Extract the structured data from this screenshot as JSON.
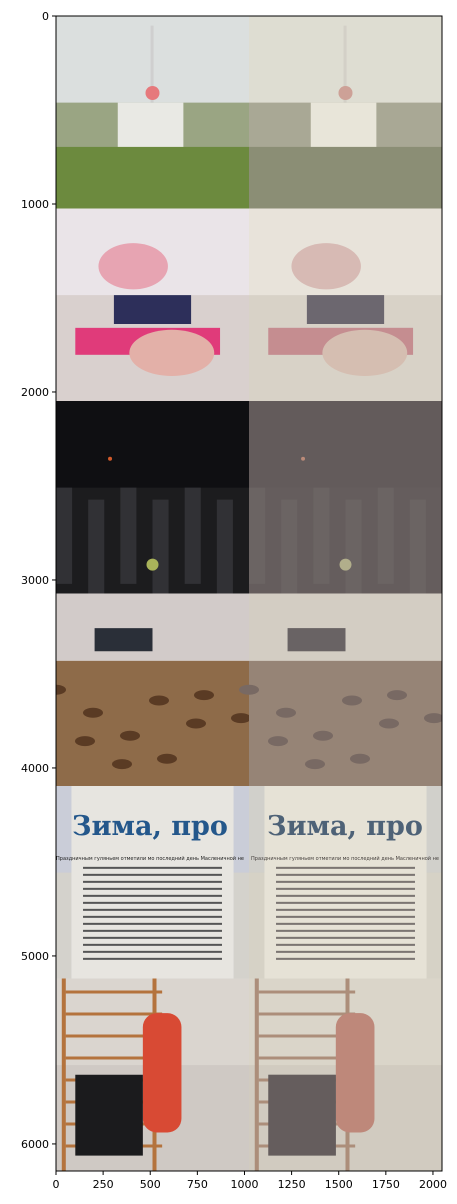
{
  "figure": {
    "panel_columns": 2,
    "panel_rows": 6,
    "rows": [
      {
        "description_tag": "building-tower-on-hill",
        "bg": "#9aa583",
        "sky": "#e6e9ee",
        "accent": "#e9e9e4"
      },
      {
        "description_tag": "toys-on-shelf",
        "bg": "#d9d0ce",
        "sky": "#ece7ec",
        "accent": "#e03b7a"
      },
      {
        "description_tag": "dark-checkered-floor",
        "bg": "#1c1c1e",
        "sky": "#0d0d10",
        "accent": "#a9b35a"
      },
      {
        "description_tag": "leopard-blanket-bed",
        "bg": "#a58d72",
        "sky": "#d9d6d8",
        "accent": "#5a3b24"
      },
      {
        "description_tag": "newspaper-page",
        "bg": "#d4d2cc",
        "sky": "#c8cdd9",
        "accent": "#23568a"
      },
      {
        "description_tag": "punching-bag-and-wall-bars",
        "bg": "#cfc9c4",
        "sky": "#dcd7d1",
        "accent": "#d84a34"
      }
    ],
    "newspaper_headline": "Зима, про",
    "newspaper_subhead": "Праздничным гуляньем отметили мо последний день Масленичной не"
  },
  "axes": {
    "x_ticks": [
      "0",
      "250",
      "500",
      "750",
      "1000",
      "1250",
      "1500",
      "1750",
      "2000"
    ],
    "y_ticks": [
      "0",
      "1000",
      "2000",
      "3000",
      "4000",
      "5000",
      "6000"
    ],
    "xlim": [
      0,
      2048
    ],
    "ylim": [
      6144,
      0
    ]
  },
  "chart_data": {
    "type": "image-grid",
    "x_ticks": [
      0,
      250,
      500,
      750,
      1000,
      1250,
      1500,
      1750,
      2000
    ],
    "y_ticks": [
      0,
      1000,
      2000,
      3000,
      4000,
      5000,
      6000
    ],
    "xlim": [
      0,
      2048
    ],
    "ylim": [
      6144,
      0
    ]
  }
}
